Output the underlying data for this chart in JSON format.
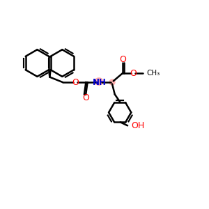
{
  "bg_color": "#ffffff",
  "bond_color": "#000000",
  "o_color": "#ff0000",
  "n_color": "#0000cc",
  "nh_highlight_color": "#ff9999",
  "figsize": [
    3.0,
    3.0
  ],
  "dpi": 100,
  "xlim": [
    0,
    12
  ],
  "ylim": [
    0,
    12
  ]
}
